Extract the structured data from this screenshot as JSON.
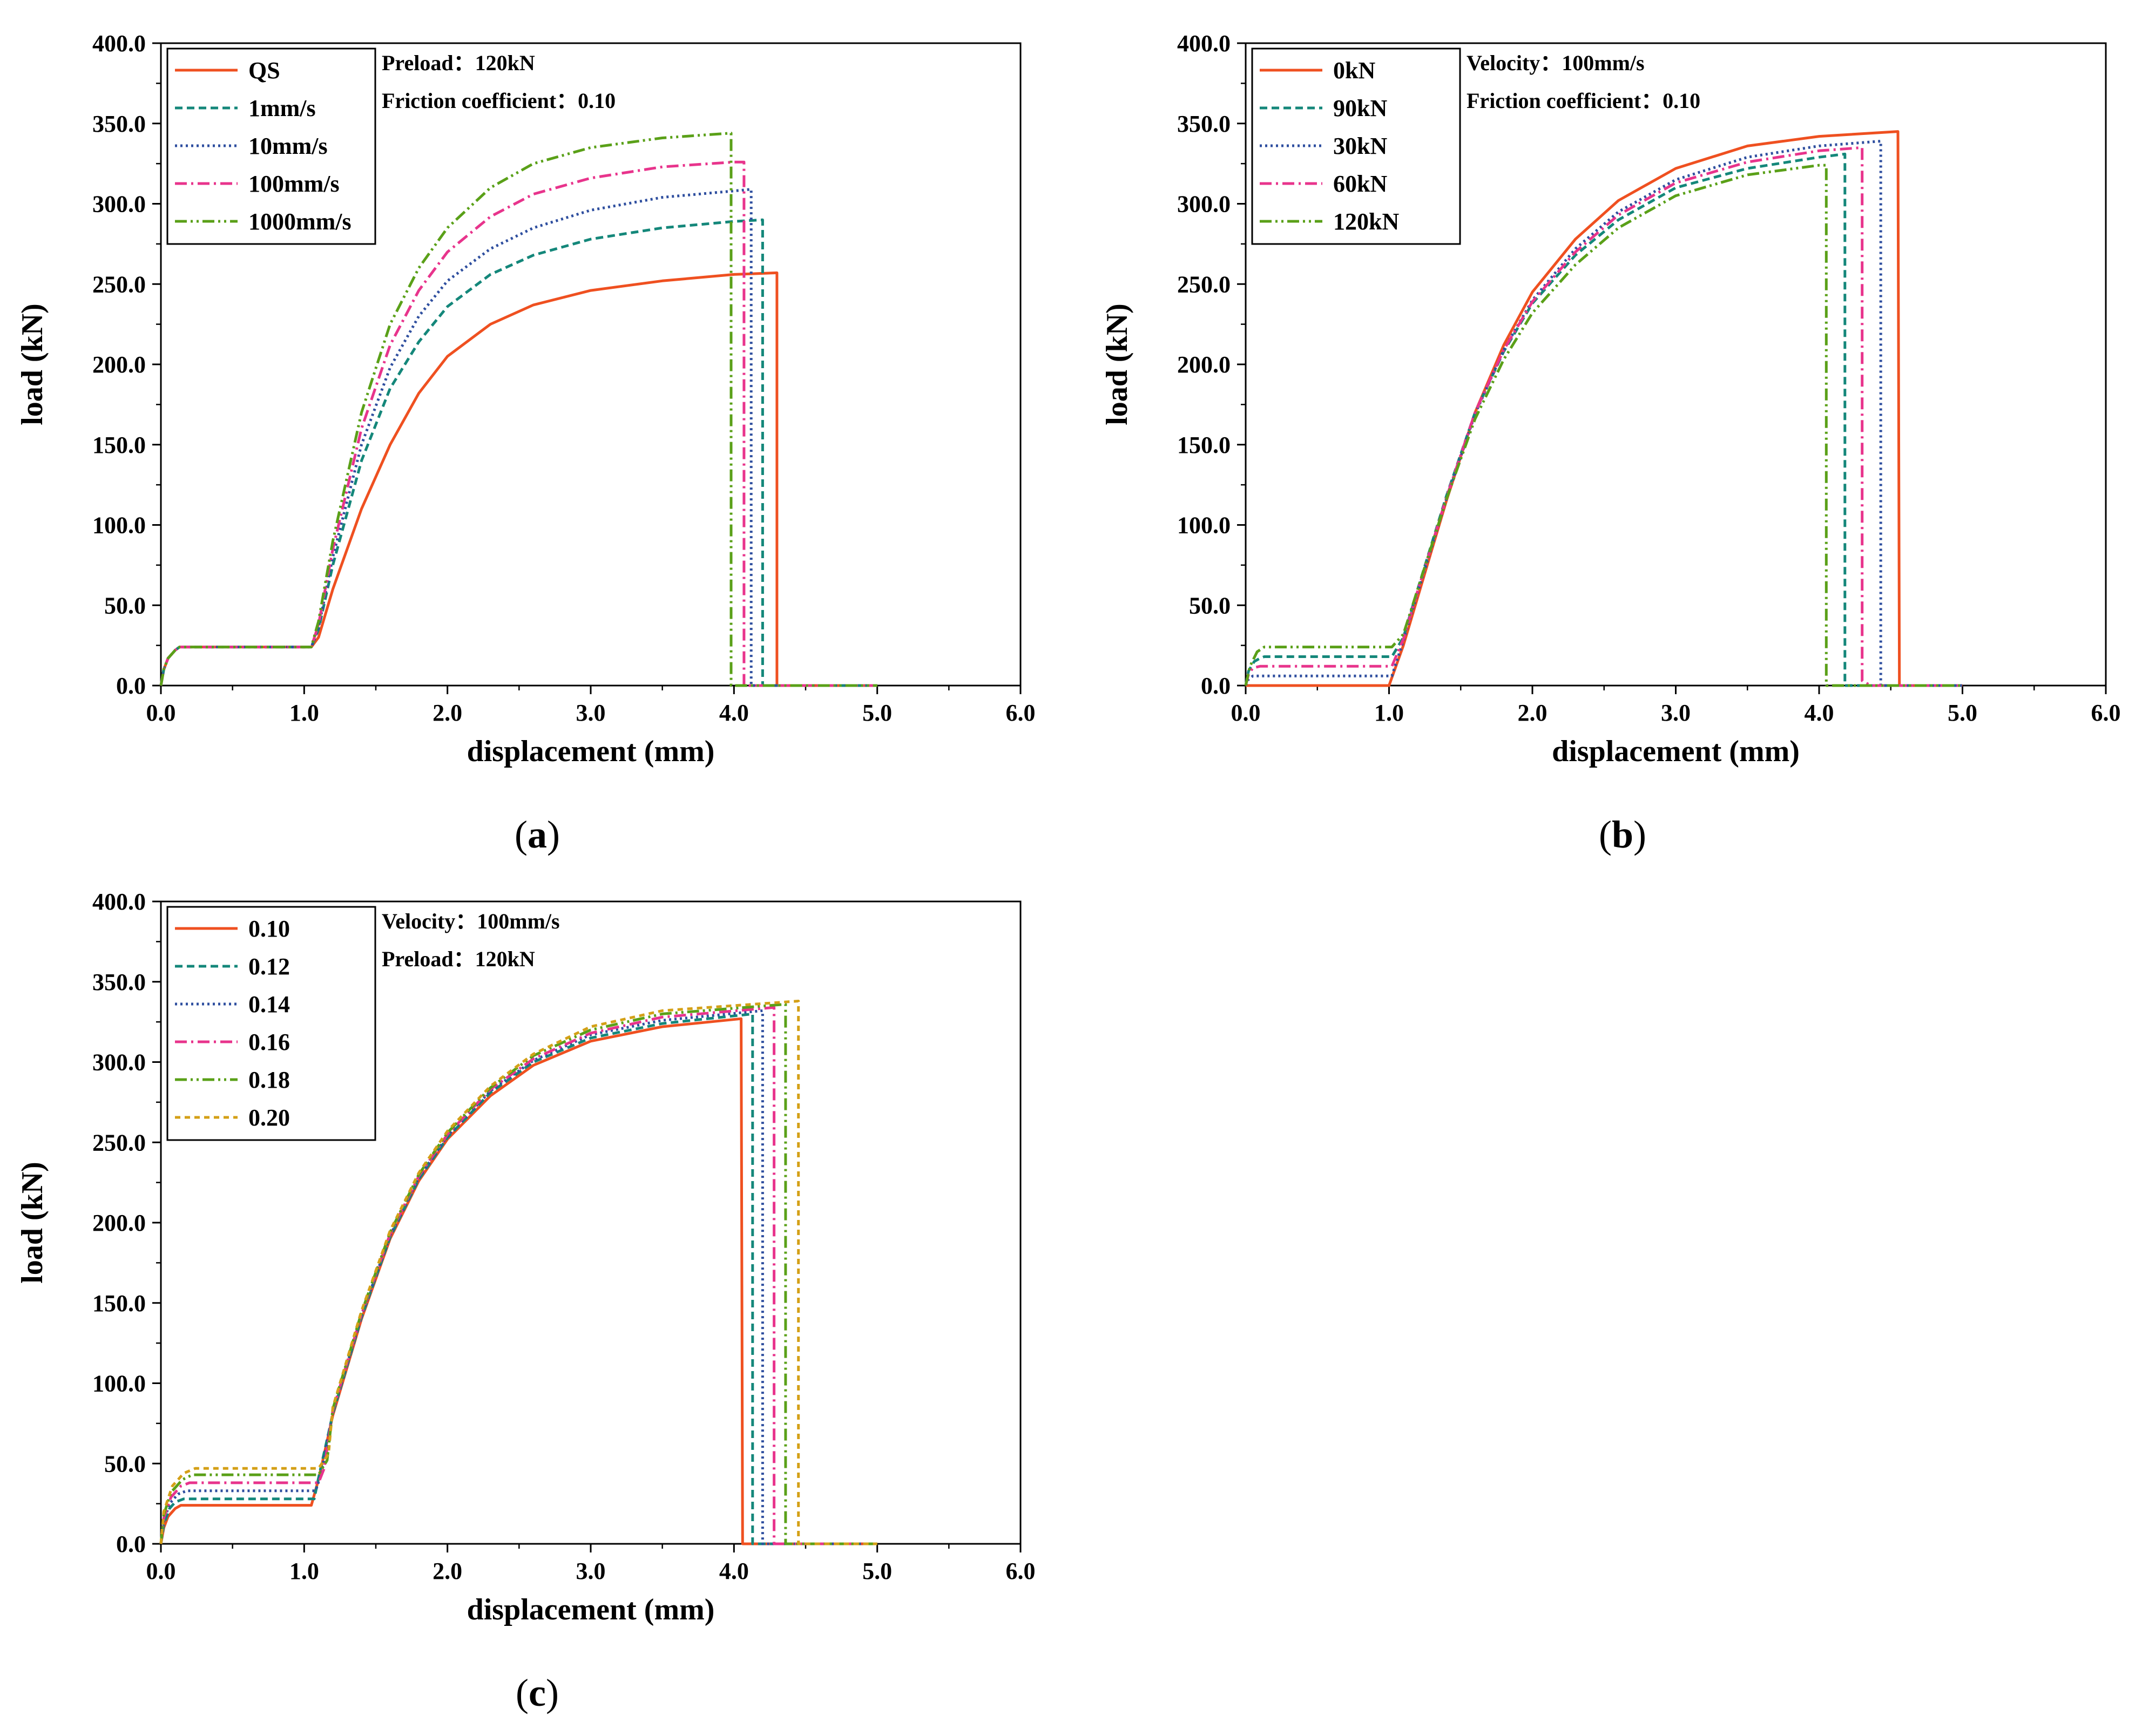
{
  "chart_data": [
    {
      "panel": "a",
      "type": "line",
      "xlabel": "displacement (mm)",
      "ylabel": "load (kN)",
      "xlim": [
        0,
        6
      ],
      "ylim": [
        0,
        400
      ],
      "xticks": [
        "0.0",
        "1.0",
        "2.0",
        "3.0",
        "4.0",
        "5.0",
        "6.0"
      ],
      "yticks": [
        "0.0",
        "50.0",
        "100.0",
        "150.0",
        "200.0",
        "250.0",
        "300.0",
        "350.0",
        "400.0"
      ],
      "annotations": [
        "Preload：120kN",
        "Friction coefficient：0.10"
      ],
      "series": [
        {
          "name": "QS",
          "color": "#ef5020",
          "dash": "solid",
          "x": [
            0,
            0.02,
            0.05,
            0.1,
            0.13,
            1.05,
            1.1,
            1.2,
            1.4,
            1.6,
            1.8,
            2.0,
            2.3,
            2.6,
            3.0,
            3.5,
            4.0,
            4.3,
            4.3,
            5.0
          ],
          "y": [
            0,
            10,
            17,
            22,
            24,
            24,
            30,
            60,
            110,
            150,
            182,
            205,
            225,
            237,
            246,
            252,
            256,
            257,
            0,
            0
          ]
        },
        {
          "name": "1mm/s",
          "color": "#14877a",
          "dash": "dashed",
          "x": [
            0,
            0.02,
            0.05,
            0.1,
            0.13,
            1.05,
            1.1,
            1.2,
            1.4,
            1.6,
            1.8,
            2.0,
            2.3,
            2.6,
            3.0,
            3.5,
            4.0,
            4.2,
            4.2,
            5.0
          ],
          "y": [
            0,
            10,
            17,
            22,
            24,
            24,
            35,
            75,
            140,
            185,
            214,
            236,
            256,
            268,
            278,
            285,
            289,
            290,
            0,
            0
          ]
        },
        {
          "name": "10mm/s",
          "color": "#2f4f9f",
          "dash": "dotted",
          "x": [
            0,
            0.02,
            0.05,
            0.1,
            0.13,
            1.05,
            1.1,
            1.2,
            1.4,
            1.6,
            1.8,
            2.0,
            2.3,
            2.6,
            3.0,
            3.5,
            4.0,
            4.12,
            4.12,
            5.0
          ],
          "y": [
            0,
            10,
            17,
            22,
            24,
            24,
            36,
            80,
            150,
            198,
            230,
            252,
            272,
            285,
            296,
            304,
            308,
            309,
            0,
            0
          ]
        },
        {
          "name": "100mm/s",
          "color": "#e8348c",
          "dash": "dashdot",
          "x": [
            0,
            0.02,
            0.05,
            0.1,
            0.13,
            1.05,
            1.1,
            1.2,
            1.4,
            1.6,
            1.8,
            2.0,
            2.3,
            2.6,
            3.0,
            3.5,
            4.0,
            4.07,
            4.07,
            5.0
          ],
          "y": [
            0,
            10,
            17,
            22,
            24,
            24,
            38,
            85,
            160,
            212,
            246,
            270,
            292,
            306,
            316,
            323,
            326,
            326,
            0,
            0
          ]
        },
        {
          "name": "1000mm/s",
          "color": "#5aa018",
          "dash": "dashdotdot",
          "x": [
            0,
            0.02,
            0.05,
            0.1,
            0.13,
            1.05,
            1.1,
            1.2,
            1.4,
            1.6,
            1.8,
            2.0,
            2.3,
            2.6,
            3.0,
            3.5,
            3.98,
            3.98,
            5.0
          ],
          "y": [
            0,
            10,
            17,
            22,
            24,
            24,
            40,
            90,
            170,
            225,
            260,
            285,
            310,
            325,
            335,
            341,
            344,
            0,
            0
          ]
        }
      ]
    },
    {
      "panel": "b",
      "type": "line",
      "xlabel": "displacement (mm)",
      "ylabel": "load (kN)",
      "xlim": [
        0,
        6
      ],
      "ylim": [
        0,
        400
      ],
      "xticks": [
        "0.0",
        "1.0",
        "2.0",
        "3.0",
        "4.0",
        "5.0",
        "6.0"
      ],
      "yticks": [
        "0.0",
        "50.0",
        "100.0",
        "150.0",
        "200.0",
        "250.0",
        "300.0",
        "350.0",
        "400.0"
      ],
      "annotations": [
        "Velocity：100mm/s",
        "Friction coefficient：0.10"
      ],
      "series": [
        {
          "name": "0kN",
          "color": "#ef5020",
          "dash": "solid",
          "x": [
            0,
            1.0,
            1.1,
            1.2,
            1.4,
            1.6,
            1.8,
            2.0,
            2.3,
            2.6,
            3.0,
            3.5,
            4.0,
            4.55,
            4.56,
            5.0
          ],
          "y": [
            0,
            0,
            25,
            55,
            115,
            170,
            212,
            245,
            278,
            302,
            322,
            336,
            342,
            345,
            0,
            0
          ]
        },
        {
          "name": "90kN",
          "color": "#14877a",
          "dash": "dashed",
          "x": [
            0,
            0.02,
            0.06,
            0.1,
            0.13,
            1.02,
            1.1,
            1.2,
            1.4,
            1.6,
            1.8,
            2.0,
            2.3,
            2.6,
            3.0,
            3.5,
            4.0,
            4.18,
            4.18,
            5.0
          ],
          "y": [
            0,
            9,
            15,
            17,
            18,
            18,
            30,
            60,
            118,
            170,
            208,
            238,
            268,
            290,
            310,
            322,
            329,
            331,
            0,
            0
          ]
        },
        {
          "name": "30kN",
          "color": "#2f4f9f",
          "dash": "dotted",
          "x": [
            0,
            0.02,
            0.05,
            0.08,
            1.02,
            1.1,
            1.2,
            1.4,
            1.6,
            1.8,
            2.0,
            2.3,
            2.6,
            3.0,
            3.5,
            4.0,
            4.43,
            4.43,
            5.0
          ],
          "y": [
            0,
            4,
            6,
            6,
            6,
            28,
            58,
            116,
            169,
            209,
            240,
            272,
            295,
            315,
            329,
            336,
            339,
            0,
            0
          ]
        },
        {
          "name": "60kN",
          "color": "#e8348c",
          "dash": "dashdot",
          "x": [
            0,
            0.02,
            0.05,
            0.1,
            1.02,
            1.1,
            1.2,
            1.4,
            1.6,
            1.8,
            2.0,
            2.3,
            2.6,
            3.0,
            3.5,
            4.0,
            4.3,
            4.3,
            4.36,
            5.0
          ],
          "y": [
            0,
            7,
            11,
            12,
            12,
            29,
            59,
            117,
            170,
            209,
            239,
            270,
            293,
            313,
            326,
            333,
            335,
            3,
            0,
            0
          ]
        },
        {
          "name": "120kN",
          "color": "#5aa018",
          "dash": "dashdotdot",
          "x": [
            0,
            0.03,
            0.08,
            0.13,
            1.02,
            1.1,
            1.2,
            1.4,
            1.6,
            1.8,
            2.0,
            2.3,
            2.6,
            3.0,
            3.5,
            4.0,
            4.05,
            4.05,
            5.0
          ],
          "y": [
            0,
            12,
            21,
            24,
            24,
            32,
            60,
            116,
            166,
            203,
            232,
            262,
            285,
            305,
            318,
            324,
            324,
            0,
            0
          ]
        }
      ]
    },
    {
      "panel": "c",
      "type": "line",
      "xlabel": "displacement (mm)",
      "ylabel": "load (kN)",
      "xlim": [
        0,
        6
      ],
      "ylim": [
        0,
        400
      ],
      "xticks": [
        "0.0",
        "1.0",
        "2.0",
        "3.0",
        "4.0",
        "5.0",
        "6.0"
      ],
      "yticks": [
        "0.0",
        "50.0",
        "100.0",
        "150.0",
        "200.0",
        "250.0",
        "300.0",
        "350.0",
        "400.0"
      ],
      "annotations": [
        "Velocity：100mm/s",
        "Preload：120kN"
      ],
      "series": [
        {
          "name": "0.10",
          "color": "#ef5020",
          "dash": "solid",
          "x": [
            0,
            0.02,
            0.05,
            0.1,
            0.14,
            1.05,
            1.1,
            1.2,
            1.4,
            1.6,
            1.8,
            2.0,
            2.3,
            2.6,
            3.0,
            3.5,
            4.05,
            4.06,
            5.0
          ],
          "y": [
            0,
            10,
            17,
            22,
            24,
            24,
            40,
            80,
            140,
            190,
            226,
            252,
            279,
            298,
            313,
            322,
            327,
            0,
            0
          ]
        },
        {
          "name": "0.12",
          "color": "#14877a",
          "dash": "dashed",
          "x": [
            0,
            0.02,
            0.06,
            0.1,
            0.16,
            1.07,
            1.1,
            1.2,
            1.4,
            1.6,
            1.8,
            2.0,
            2.3,
            2.6,
            3.0,
            3.5,
            4.13,
            4.13,
            5.0
          ],
          "y": [
            0,
            12,
            22,
            26,
            28,
            28,
            41,
            81,
            141,
            191,
            227,
            253,
            281,
            300,
            315,
            324,
            330,
            0,
            0
          ]
        },
        {
          "name": "0.14",
          "color": "#2f4f9f",
          "dash": "dotted",
          "x": [
            0,
            0.02,
            0.06,
            0.12,
            0.18,
            1.08,
            1.12,
            1.2,
            1.4,
            1.6,
            1.8,
            2.0,
            2.3,
            2.6,
            3.0,
            3.5,
            4.2,
            4.2,
            5.0
          ],
          "y": [
            0,
            14,
            25,
            31,
            33,
            33,
            44,
            82,
            142,
            192,
            228,
            254,
            282,
            301,
            317,
            326,
            332,
            0,
            0
          ]
        },
        {
          "name": "0.16",
          "color": "#e8348c",
          "dash": "dashdot",
          "x": [
            0,
            0.02,
            0.07,
            0.14,
            0.2,
            1.1,
            1.14,
            1.2,
            1.4,
            1.6,
            1.8,
            2.0,
            2.3,
            2.6,
            3.0,
            3.5,
            4.28,
            4.28,
            5.0
          ],
          "y": [
            0,
            16,
            29,
            36,
            38,
            38,
            47,
            83,
            143,
            193,
            229,
            255,
            283,
            302,
            318,
            328,
            334,
            0,
            0
          ]
        },
        {
          "name": "0.18",
          "color": "#5aa018",
          "dash": "dashdotdot",
          "x": [
            0,
            0.02,
            0.07,
            0.15,
            0.22,
            1.1,
            1.16,
            1.2,
            1.4,
            1.6,
            1.8,
            2.0,
            2.3,
            2.6,
            3.0,
            3.5,
            4.36,
            4.36,
            5.0
          ],
          "y": [
            0,
            18,
            32,
            40,
            43,
            43,
            52,
            84,
            144,
            194,
            230,
            256,
            284,
            304,
            320,
            330,
            336,
            0,
            0
          ]
        },
        {
          "name": "0.20",
          "color": "#d4a017",
          "dash": "shortdash",
          "x": [
            0,
            0.02,
            0.08,
            0.16,
            0.24,
            1.1,
            1.17,
            1.2,
            1.4,
            1.6,
            1.8,
            2.0,
            2.3,
            2.6,
            3.0,
            3.5,
            4.45,
            4.45,
            5.0
          ],
          "y": [
            0,
            20,
            36,
            44,
            47,
            47,
            56,
            85,
            145,
            195,
            231,
            257,
            285,
            305,
            322,
            332,
            338,
            0,
            0
          ]
        }
      ]
    }
  ],
  "panel_labels": [
    "(a)",
    "(b)",
    "(c)"
  ]
}
